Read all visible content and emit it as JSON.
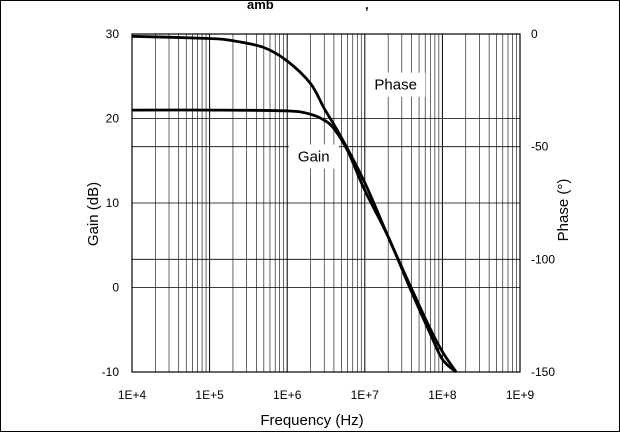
{
  "chart_data": {
    "type": "line",
    "header_fragment": "amb",
    "header_punct": ",",
    "xlabel": "Frequency (Hz)",
    "ylabel_left": "Gain (dB)",
    "ylabel_right": "Phase (°)",
    "x_scale": "log",
    "xlim": [
      10000,
      1000000000
    ],
    "ylim_left": [
      -10,
      30
    ],
    "ylim_right": [
      -150,
      0
    ],
    "x_tick_labels": [
      "1E+4",
      "1E+5",
      "1E+6",
      "1E+7",
      "1E+8",
      "1E+9"
    ],
    "left_tick_labels": [
      "-10",
      "0",
      "10",
      "20",
      "30"
    ],
    "left_tick_values": [
      -10,
      0,
      10,
      20,
      30
    ],
    "right_tick_labels": [
      "-150",
      "-100",
      "-50",
      "0"
    ],
    "right_tick_values": [
      -150,
      -100,
      -50,
      0
    ],
    "grid": true,
    "annotations": [
      {
        "text": "Phase",
        "x": 25000000,
        "y": 24
      },
      {
        "text": "Gain",
        "x": 2200000,
        "y": 15.5
      }
    ],
    "series": [
      {
        "axis": "left",
        "x": [
          10000,
          100000,
          1000000,
          2000000,
          3000000,
          4000000,
          6000000,
          10000000,
          20000000,
          40000000,
          70000000,
          100000000,
          150000000
        ],
        "y": [
          21,
          21,
          20.9,
          20.5,
          19.8,
          18.8,
          16.2,
          11.5,
          6,
          -0.5,
          -5.5,
          -8.5,
          -10
        ]
      },
      {
        "axis": "right",
        "x": [
          10000,
          100000,
          200000,
          500000,
          1000000,
          2000000,
          3000000,
          5000000,
          10000000,
          20000000,
          40000000,
          70000000,
          100000000,
          150000000
        ],
        "y": [
          -1,
          -2,
          -3,
          -6,
          -12,
          -22,
          -33,
          -46,
          -66,
          -90,
          -113,
          -131,
          -141,
          -150
        ]
      }
    ]
  }
}
